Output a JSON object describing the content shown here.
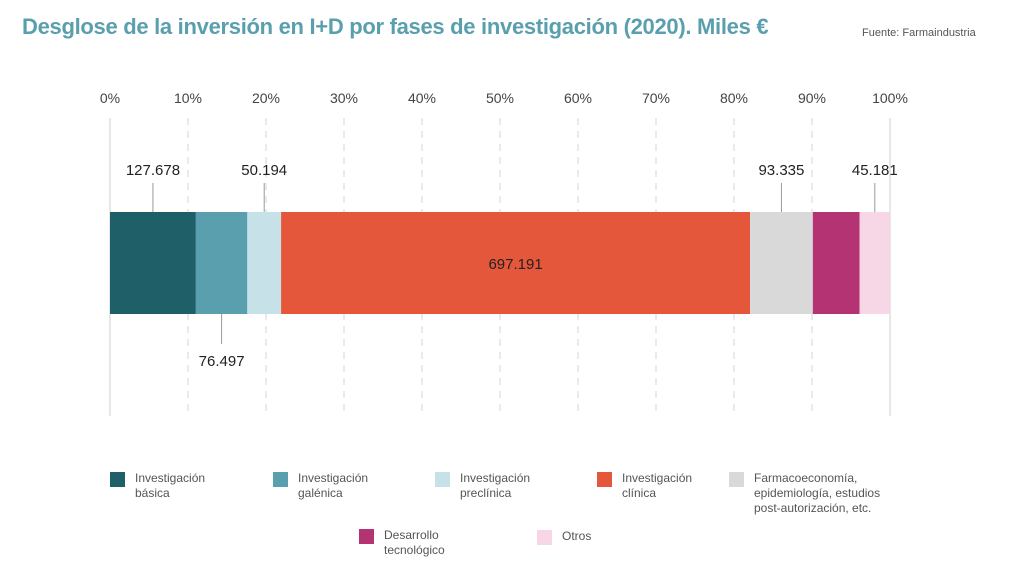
{
  "title": "Desglose de la inversión en I+D por fases de investigación (2020). Miles €",
  "source": "Fuente: Farmaindustria",
  "chart_data": {
    "type": "bar",
    "orientation": "horizontal",
    "stacked": "100%",
    "xlim": [
      0,
      100
    ],
    "ticks": [
      "0%",
      "10%",
      "20%",
      "30%",
      "40%",
      "50%",
      "60%",
      "70%",
      "80%",
      "90%",
      "100%"
    ],
    "grid": true,
    "legend_position": "bottom",
    "series": [
      {
        "name": "Investigación básica",
        "value": 127678,
        "label": "127.678",
        "color": "#1e5f68",
        "label_position": "above"
      },
      {
        "name": "Investigación galénica",
        "value": 76497,
        "label": "76.497",
        "color": "#5a9fae",
        "label_position": "below"
      },
      {
        "name": "Investigación preclínica",
        "value": 50194,
        "label": "50.194",
        "color": "#c6e2e8",
        "label_position": "above"
      },
      {
        "name": "Investigación clínica",
        "value": 697191,
        "label": "697.191",
        "color": "#e4573b",
        "label_position": "inside"
      },
      {
        "name": "Farmacoeconomía, epidemiología, estudios post-autorización, etc.",
        "value": 93335,
        "label": "93.335",
        "color": "#d9d9d9",
        "label_position": "above"
      },
      {
        "name": "Desarrollo tecnológico",
        "value": null,
        "label": "",
        "color": "#b33373",
        "label_position": "none"
      },
      {
        "name": "Otros",
        "value": 45181,
        "label": "45.181",
        "color": "#f7d6e6",
        "label_position": "above"
      }
    ]
  },
  "legend": [
    {
      "label": "Investigación\nbásica",
      "color": "#1e5f68"
    },
    {
      "label": "Investigación\ngalénica",
      "color": "#5a9fae"
    },
    {
      "label": "Investigación\npreclínica",
      "color": "#c6e2e8"
    },
    {
      "label": "Investigación\nclínica",
      "color": "#e4573b"
    },
    {
      "label": "Farmacoeconomía,\nepidemiología, estudios\npost-autorización, etc.",
      "color": "#d9d9d9"
    },
    {
      "label": "Desarrollo\ntecnológico",
      "color": "#b33373"
    },
    {
      "label": "Otros",
      "color": "#f7d6e6"
    }
  ]
}
